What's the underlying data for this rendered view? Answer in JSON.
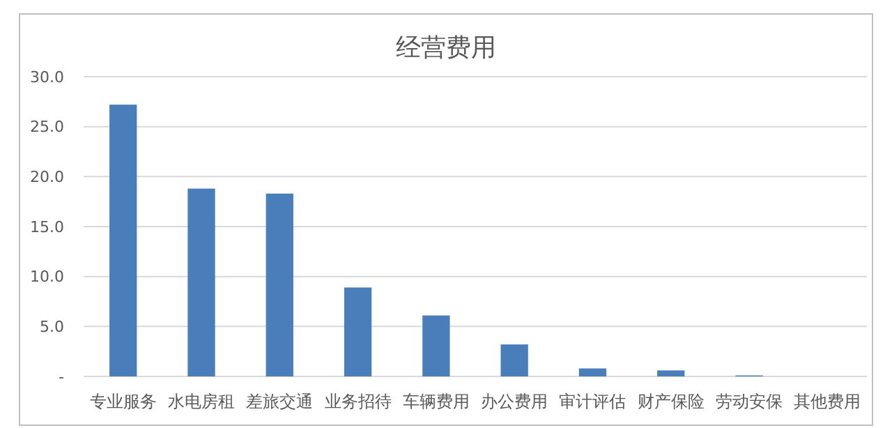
{
  "chart_data": {
    "type": "bar",
    "title": "经营费用",
    "categories": [
      "专业服务",
      "水电房租",
      "差旅交通",
      "业务招待",
      "车辆费用",
      "办公费用",
      "审计评估",
      "财产保险",
      "劳动安保",
      "其他费用"
    ],
    "values": [
      27.2,
      18.8,
      18.3,
      8.9,
      6.1,
      3.2,
      0.8,
      0.6,
      0.1,
      0
    ],
    "color": "#4a7ebb",
    "ylim": [
      0,
      30
    ],
    "yticks": [
      {
        "value": 0,
        "label": "-"
      },
      {
        "value": 5,
        "label": "5.0"
      },
      {
        "value": 10,
        "label": "10.0"
      },
      {
        "value": 15,
        "label": "15.0"
      },
      {
        "value": 20,
        "label": "20.0"
      },
      {
        "value": 25,
        "label": "25.0"
      },
      {
        "value": 30,
        "label": "30.0"
      }
    ],
    "grid": "y"
  }
}
